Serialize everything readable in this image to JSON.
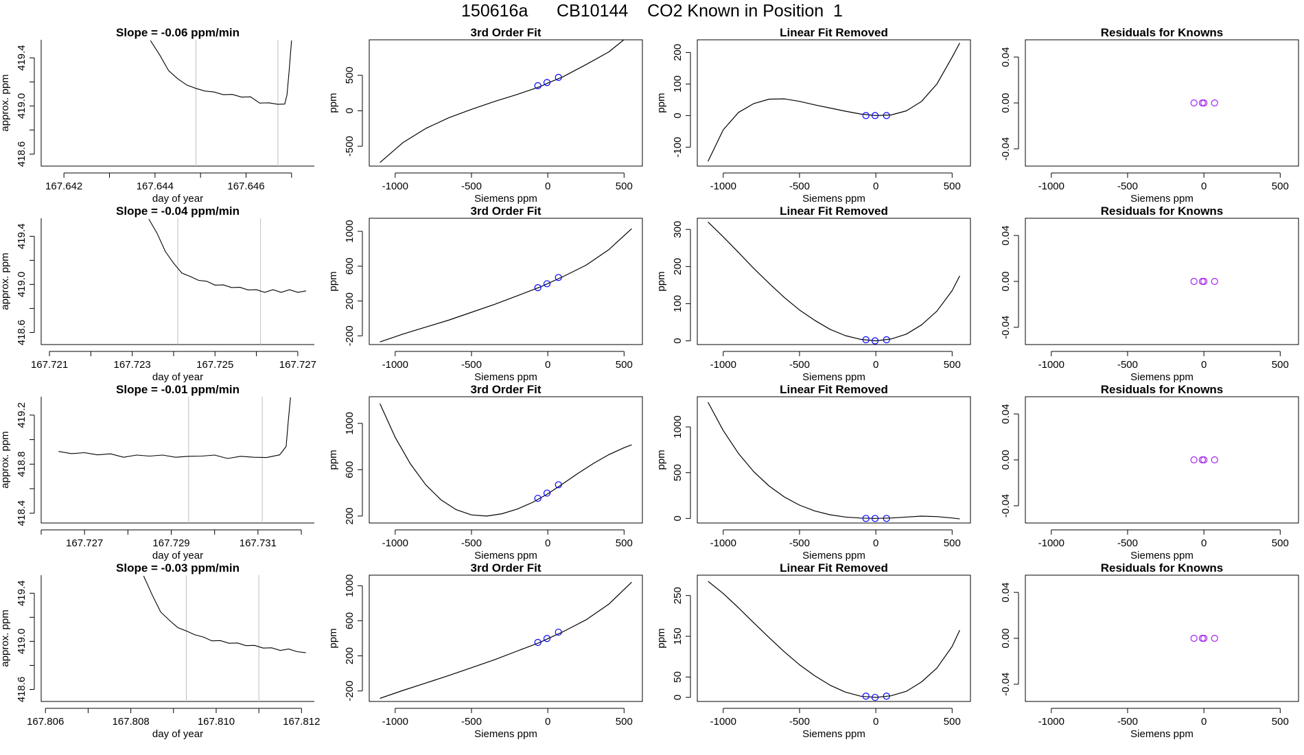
{
  "page_title": "150616a      CB10144    CO2 Known in Position  1",
  "colors": {
    "line": "#000000",
    "axis": "#000000",
    "vline": "#bfbfbf",
    "point": "#0000ff",
    "residual_point": "#a020f0",
    "noise_point": "#ff0000"
  },
  "chart_data": [
    {
      "id": "r1c1",
      "type": "line",
      "title": "Slope =  -0.06  ppm/min",
      "xlabel": "day of year",
      "ylabel": "approx. ppm",
      "xlim": [
        167.6415,
        167.6475
      ],
      "ylim": [
        418.5,
        419.55
      ],
      "xticks": [
        167.642,
        167.644,
        167.646
      ],
      "xtick_labels": [
        "167.642",
        "167.644",
        "167.646"
      ],
      "xticks_minor": [
        167.643,
        167.645,
        167.647
      ],
      "yticks": [
        418.6,
        419.0,
        419.4
      ],
      "ytick_labels": [
        "418.6",
        "419.0",
        "419.4"
      ],
      "yticks_minor": [
        418.8,
        419.2
      ],
      "vlines": [
        167.6449,
        167.6467
      ],
      "x": [
        167.6439,
        167.6441,
        167.6443,
        167.6445,
        167.6447,
        167.6449,
        167.6451,
        167.6453,
        167.6455,
        167.6457,
        167.6459,
        167.6461,
        167.6463,
        167.6465,
        167.6467,
        167.64685,
        167.6469,
        167.64695,
        167.647
      ],
      "y": [
        419.55,
        419.42,
        419.3,
        419.22,
        419.18,
        419.14,
        419.13,
        419.11,
        419.1,
        419.09,
        419.08,
        419.07,
        419.03,
        419.02,
        419.02,
        419.01,
        419.1,
        419.3,
        419.55
      ]
    },
    {
      "id": "r1c2",
      "type": "cubic_fit",
      "title": "3rd Order Fit",
      "xlabel": "Siemens ppm",
      "ylabel": "ppm",
      "xlim": [
        -1170,
        620
      ],
      "ylim": [
        -780,
        1000
      ],
      "xticks": [
        -1000,
        -500,
        0,
        500
      ],
      "xtick_labels": [
        "-1000",
        "-500",
        "0",
        "500"
      ],
      "yticks": [
        -500,
        0,
        500
      ],
      "ytick_labels": [
        "-500",
        "0",
        "500"
      ],
      "curve_x": [
        -1100,
        -950,
        -800,
        -650,
        -500,
        -350,
        -200,
        -50,
        0,
        100,
        250,
        400,
        550
      ],
      "curve_y": [
        -730,
        -450,
        -250,
        -100,
        20,
        130,
        230,
        340,
        390,
        480,
        650,
        830,
        1090
      ],
      "points_x": [
        -65,
        -5,
        70
      ],
      "points_y": [
        353,
        398,
        470
      ]
    },
    {
      "id": "r1c3",
      "type": "cubic_fit",
      "title": "Linear Fit Removed",
      "xlabel": "Siemens ppm",
      "ylabel": "ppm",
      "xlim": [
        -1170,
        620
      ],
      "ylim": [
        -160,
        240
      ],
      "xticks": [
        -1000,
        -500,
        0,
        500
      ],
      "xtick_labels": [
        "-1000",
        "-500",
        "0",
        "500"
      ],
      "yticks": [
        -100,
        0,
        100,
        200
      ],
      "ytick_labels": [
        "-100",
        "0",
        "100",
        "200"
      ],
      "curve_x": [
        -1100,
        -1000,
        -900,
        -800,
        -700,
        -600,
        -500,
        -400,
        -300,
        -200,
        -100,
        0,
        100,
        200,
        300,
        400,
        500,
        550
      ],
      "curve_y": [
        -145,
        -45,
        10,
        38,
        52,
        53,
        45,
        34,
        24,
        14,
        5,
        0,
        2,
        15,
        45,
        100,
        185,
        230
      ],
      "points_x": [
        -65,
        -5,
        70
      ],
      "points_y": [
        0,
        0,
        0
      ]
    },
    {
      "id": "r1c4",
      "type": "residuals",
      "title": "Residuals for Knowns",
      "xlabel": "Siemens ppm",
      "ylabel": "",
      "xlim": [
        -1170,
        620
      ],
      "ylim": [
        -0.055,
        0.055
      ],
      "xticks": [
        -1000,
        -500,
        0,
        500
      ],
      "xtick_labels": [
        "-1000",
        "-500",
        "0",
        "500"
      ],
      "yticks": [
        -0.04,
        0.0,
        0.04
      ],
      "ytick_labels": [
        "-0.04",
        "0.00",
        "0.04"
      ],
      "points_x": [
        -65,
        -10,
        0,
        70
      ],
      "points_y": [
        0,
        0,
        0,
        0
      ]
    },
    {
      "id": "r2c1",
      "type": "line",
      "title": "Slope =  -0.04  ppm/min",
      "xlabel": "day of year",
      "ylabel": "approx. ppm",
      "xlim": [
        167.7208,
        167.7274
      ],
      "ylim": [
        418.5,
        419.55
      ],
      "xticks": [
        167.721,
        167.723,
        167.725,
        167.727
      ],
      "xtick_labels": [
        "167.721",
        "167.723",
        "167.725",
        "167.727"
      ],
      "xticks_minor": [
        167.722,
        167.724,
        167.726
      ],
      "yticks": [
        418.6,
        419.0,
        419.4
      ],
      "ytick_labels": [
        "418.6",
        "419.0",
        "419.4"
      ],
      "yticks_minor": [
        418.8,
        419.2
      ],
      "vlines": [
        167.7241,
        167.7261
      ],
      "x": [
        167.7234,
        167.7236,
        167.7238,
        167.724,
        167.7242,
        167.7244,
        167.7246,
        167.7248,
        167.725,
        167.7252,
        167.7254,
        167.7256,
        167.7258,
        167.726,
        167.7262,
        167.7264,
        167.7266,
        167.7268,
        167.727,
        167.7272
      ],
      "y": [
        419.55,
        419.42,
        419.28,
        419.17,
        419.1,
        419.06,
        419.04,
        419.02,
        419.0,
        418.99,
        418.98,
        418.97,
        418.96,
        418.95,
        418.94,
        418.95,
        418.94,
        418.95,
        418.94,
        418.94
      ]
    },
    {
      "id": "r2c2",
      "type": "cubic_fit",
      "title": "3rd Order Fit",
      "xlabel": "Siemens ppm",
      "ylabel": "ppm",
      "xlim": [
        -1170,
        620
      ],
      "ylim": [
        -300,
        1150
      ],
      "xticks": [
        -1000,
        -500,
        0,
        500
      ],
      "xtick_labels": [
        "-1000",
        "-500",
        "0",
        "500"
      ],
      "yticks": [
        -200,
        200,
        600,
        1000
      ],
      "ytick_labels": [
        "-200",
        "200",
        "600",
        "1000"
      ],
      "curve_x": [
        -1100,
        -950,
        -800,
        -650,
        -500,
        -350,
        -200,
        -50,
        0,
        100,
        250,
        400,
        550
      ],
      "curve_y": [
        -270,
        -180,
        -100,
        -20,
        70,
        160,
        260,
        360,
        400,
        480,
        610,
        790,
        1030
      ],
      "points_x": [
        -65,
        -5,
        70
      ],
      "points_y": [
        353,
        398,
        470
      ]
    },
    {
      "id": "r2c3",
      "type": "cubic_fit",
      "title": "Linear Fit Removed",
      "xlabel": "Siemens ppm",
      "ylabel": "ppm",
      "xlim": [
        -1170,
        620
      ],
      "ylim": [
        -10,
        330
      ],
      "xticks": [
        -1000,
        -500,
        0,
        500
      ],
      "xtick_labels": [
        "-1000",
        "-500",
        "0",
        "500"
      ],
      "yticks": [
        0,
        100,
        200,
        300
      ],
      "ytick_labels": [
        "0",
        "100",
        "200",
        "300"
      ],
      "curve_x": [
        -1100,
        -1000,
        -900,
        -800,
        -700,
        -600,
        -500,
        -400,
        -300,
        -200,
        -100,
        0,
        100,
        200,
        300,
        400,
        500,
        550
      ],
      "curve_y": [
        320,
        280,
        238,
        195,
        155,
        117,
        83,
        55,
        31,
        14,
        4,
        0,
        5,
        18,
        43,
        80,
        135,
        175
      ],
      "points_x": [
        -65,
        -5,
        70
      ],
      "points_y": [
        3,
        0,
        3
      ]
    },
    {
      "id": "r2c4",
      "type": "residuals",
      "title": "Residuals for Knowns",
      "xlabel": "Siemens ppm",
      "ylabel": "",
      "xlim": [
        -1170,
        620
      ],
      "ylim": [
        -0.055,
        0.055
      ],
      "xticks": [
        -1000,
        -500,
        0,
        500
      ],
      "xtick_labels": [
        "-1000",
        "-500",
        "0",
        "500"
      ],
      "yticks": [
        -0.04,
        0.0,
        0.04
      ],
      "ytick_labels": [
        "-0.04",
        "0.00",
        "0.04"
      ],
      "points_x": [
        -65,
        -10,
        0,
        70
      ],
      "points_y": [
        0,
        0,
        0,
        0
      ]
    },
    {
      "id": "r3c1",
      "type": "line",
      "title": "Slope =  -0.01  ppm/min",
      "xlabel": "day of year",
      "ylabel": "approx. ppm",
      "xlim": [
        167.726,
        167.7323
      ],
      "ylim": [
        418.32,
        419.35
      ],
      "xticks": [
        167.727,
        167.729,
        167.731
      ],
      "xtick_labels": [
        "167.727",
        "167.729",
        "167.731"
      ],
      "xticks_minor": [
        167.726,
        167.728,
        167.73,
        167.732
      ],
      "yticks": [
        418.4,
        418.8,
        419.2
      ],
      "ytick_labels": [
        "418.4",
        "418.8",
        "419.2"
      ],
      "yticks_minor": [
        418.6,
        419.0
      ],
      "vlines": [
        167.7294,
        167.7311
      ],
      "x": [
        167.7264,
        167.7267,
        167.727,
        167.7273,
        167.7276,
        167.7279,
        167.7282,
        167.7285,
        167.7288,
        167.7291,
        167.7294,
        167.7297,
        167.73,
        167.7303,
        167.7306,
        167.7309,
        167.7312,
        167.7315,
        167.73165,
        167.7317,
        167.73175
      ],
      "y": [
        418.91,
        418.88,
        418.9,
        418.87,
        418.89,
        418.85,
        418.88,
        418.86,
        418.88,
        418.85,
        418.87,
        418.86,
        418.88,
        418.84,
        418.87,
        418.85,
        418.86,
        418.87,
        418.95,
        419.15,
        419.35
      ]
    },
    {
      "id": "r3c2",
      "type": "cubic_fit",
      "title": "3rd Order Fit",
      "xlabel": "Siemens ppm",
      "ylabel": "ppm",
      "xlim": [
        -1170,
        620
      ],
      "ylim": [
        140,
        1230
      ],
      "xticks": [
        -1000,
        -500,
        0,
        500
      ],
      "xtick_labels": [
        "-1000",
        "-500",
        "0",
        "500"
      ],
      "yticks": [
        200,
        600,
        1000
      ],
      "ytick_labels": [
        "200",
        "600",
        "1000"
      ],
      "curve_x": [
        -1100,
        -1000,
        -900,
        -800,
        -700,
        -600,
        -500,
        -400,
        -300,
        -200,
        -100,
        0,
        100,
        200,
        300,
        400,
        500,
        550
      ],
      "curve_y": [
        1170,
        880,
        650,
        470,
        340,
        255,
        210,
        200,
        220,
        260,
        318,
        392,
        480,
        570,
        655,
        730,
        790,
        815
      ],
      "points_x": [
        -65,
        -5,
        70
      ],
      "points_y": [
        353,
        398,
        470
      ]
    },
    {
      "id": "r3c3",
      "type": "cubic_fit",
      "title": "Linear Fit Removed",
      "xlabel": "Siemens ppm",
      "ylabel": "ppm",
      "xlim": [
        -1170,
        620
      ],
      "ylim": [
        -50,
        1330
      ],
      "xticks": [
        -1000,
        -500,
        0,
        500
      ],
      "xtick_labels": [
        "-1000",
        "-500",
        "0",
        "500"
      ],
      "yticks": [
        0,
        500,
        1000
      ],
      "ytick_labels": [
        "0",
        "500",
        "1000"
      ],
      "curve_x": [
        -1100,
        -1000,
        -900,
        -800,
        -700,
        -600,
        -500,
        -400,
        -300,
        -200,
        -100,
        0,
        100,
        200,
        300,
        400,
        500,
        550
      ],
      "curve_y": [
        1270,
        960,
        710,
        510,
        355,
        235,
        145,
        82,
        40,
        15,
        4,
        0,
        5,
        15,
        25,
        20,
        5,
        -5
      ],
      "points_x": [
        -65,
        -5,
        70
      ],
      "points_y": [
        0,
        0,
        0
      ]
    },
    {
      "id": "r3c4",
      "type": "residuals",
      "title": "Residuals for Knowns",
      "xlabel": "Siemens ppm",
      "ylabel": "",
      "xlim": [
        -1170,
        620
      ],
      "ylim": [
        -0.055,
        0.055
      ],
      "xticks": [
        -1000,
        -500,
        0,
        500
      ],
      "xtick_labels": [
        "-1000",
        "-500",
        "0",
        "500"
      ],
      "yticks": [
        -0.04,
        0.0,
        0.04
      ],
      "ytick_labels": [
        "-0.04",
        "0.00",
        "0.04"
      ],
      "points_x": [
        -65,
        -10,
        0,
        70
      ],
      "points_y": [
        0,
        0,
        0,
        0
      ]
    },
    {
      "id": "r4c1",
      "type": "line",
      "title": "Slope =  -0.03  ppm/min",
      "xlabel": "day of year",
      "ylabel": "approx. ppm",
      "xlim": [
        167.8059,
        167.8123
      ],
      "ylim": [
        418.5,
        419.55
      ],
      "xticks": [
        167.806,
        167.808,
        167.81,
        167.812
      ],
      "xtick_labels": [
        "167.806",
        "167.808",
        "167.810",
        "167.812"
      ],
      "xticks_minor": [
        167.807,
        167.809,
        167.811
      ],
      "yticks": [
        418.6,
        419.0,
        419.4
      ],
      "ytick_labels": [
        "418.6",
        "419.0",
        "419.4"
      ],
      "yticks_minor": [
        418.8,
        419.2
      ],
      "vlines": [
        167.8093,
        167.811
      ],
      "x": [
        167.8083,
        167.8085,
        167.8087,
        167.8089,
        167.8091,
        167.8093,
        167.8095,
        167.8097,
        167.8099,
        167.8101,
        167.8103,
        167.8105,
        167.8107,
        167.8109,
        167.8111,
        167.8113,
        167.8115,
        167.8117,
        167.8119,
        167.8121
      ],
      "y": [
        419.55,
        419.38,
        419.25,
        419.17,
        419.12,
        419.08,
        419.06,
        419.03,
        419.01,
        419.0,
        418.99,
        418.98,
        418.97,
        418.96,
        418.95,
        418.94,
        418.93,
        418.93,
        418.92,
        418.9
      ]
    },
    {
      "id": "r4c2",
      "type": "cubic_fit",
      "title": "3rd Order Fit",
      "xlabel": "Siemens ppm",
      "ylabel": "ppm",
      "xlim": [
        -1170,
        620
      ],
      "ylim": [
        -320,
        1120
      ],
      "xticks": [
        -1000,
        -500,
        0,
        500
      ],
      "xtick_labels": [
        "-1000",
        "-500",
        "0",
        "500"
      ],
      "yticks": [
        -200,
        200,
        600,
        1000
      ],
      "ytick_labels": [
        "-200",
        "200",
        "600",
        "1000"
      ],
      "curve_x": [
        -1100,
        -950,
        -800,
        -650,
        -500,
        -350,
        -200,
        -50,
        0,
        100,
        250,
        400,
        550
      ],
      "curve_y": [
        -285,
        -195,
        -110,
        -25,
        65,
        155,
        255,
        355,
        395,
        475,
        610,
        790,
        1040
      ],
      "points_x": [
        -65,
        -5,
        70
      ],
      "points_y": [
        353,
        398,
        470
      ]
    },
    {
      "id": "r4c3",
      "type": "cubic_fit",
      "title": "Linear Fit Removed",
      "xlabel": "Siemens ppm",
      "ylabel": "ppm",
      "xlim": [
        -1170,
        620
      ],
      "ylim": [
        -10,
        300
      ],
      "xticks": [
        -1000,
        -500,
        0,
        500
      ],
      "xtick_labels": [
        "-1000",
        "-500",
        "0",
        "500"
      ],
      "yticks": [
        0,
        50,
        150,
        250
      ],
      "ytick_labels": [
        "0",
        "50",
        "150",
        "250"
      ],
      "curve_x": [
        -1100,
        -1000,
        -900,
        -800,
        -700,
        -600,
        -500,
        -400,
        -300,
        -200,
        -100,
        0,
        100,
        200,
        300,
        400,
        500,
        550
      ],
      "curve_y": [
        285,
        255,
        220,
        183,
        147,
        112,
        80,
        53,
        30,
        13,
        3,
        0,
        4,
        15,
        38,
        72,
        125,
        165
      ],
      "points_x": [
        -65,
        -5,
        70
      ],
      "points_y": [
        3,
        0,
        3
      ]
    },
    {
      "id": "r4c4",
      "type": "residuals",
      "title": "Residuals for Knowns",
      "xlabel": "Siemens ppm",
      "ylabel": "",
      "xlim": [
        -1170,
        620
      ],
      "ylim": [
        -0.055,
        0.055
      ],
      "xticks": [
        -1000,
        -500,
        0,
        500
      ],
      "xtick_labels": [
        "-1000",
        "-500",
        "0",
        "500"
      ],
      "yticks": [
        -0.04,
        0.0,
        0.04
      ],
      "ytick_labels": [
        "-0.04",
        "0.00",
        "0.04"
      ],
      "points_x": [
        -65,
        -10,
        0,
        70
      ],
      "points_y": [
        0,
        0,
        0,
        0
      ]
    }
  ]
}
